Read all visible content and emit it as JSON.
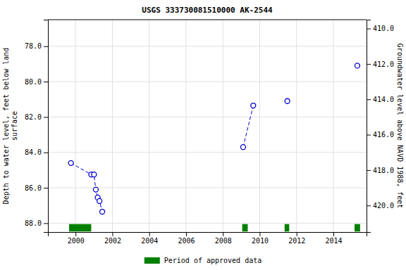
{
  "chart_data": {
    "type": "line",
    "title": "USGS 333730081510000 AK-2544",
    "ylabel": "Depth to water level, feet below land\nsurface",
    "y2label": "Groundwater level above NAVD 1988, feet",
    "xlim": [
      1998.5,
      2015.8
    ],
    "xticks": [
      2000,
      2002,
      2004,
      2006,
      2008,
      2010,
      2012,
      2014
    ],
    "ylim": [
      88.5,
      76.5
    ],
    "yticks": [
      {
        "value": 78,
        "label": "78.0"
      },
      {
        "value": 80,
        "label": "80.0"
      },
      {
        "value": 82,
        "label": "82.0"
      },
      {
        "value": 84,
        "label": "84.0"
      },
      {
        "value": 86,
        "label": "86.0"
      },
      {
        "value": 88,
        "label": "88.0"
      }
    ],
    "y2lim": [
      421.5,
      409.5
    ],
    "y2ticks": [
      {
        "value": 410,
        "label": "410.0"
      },
      {
        "value": 412,
        "label": "412.0"
      },
      {
        "value": 414,
        "label": "414.0"
      },
      {
        "value": 416,
        "label": "416.0"
      },
      {
        "value": 418,
        "label": "418.0"
      },
      {
        "value": 420,
        "label": "420.0"
      }
    ],
    "grid": true,
    "legend": "bottom",
    "series": [
      {
        "type": "line",
        "color": "#0000cc",
        "marker": "circle",
        "line_style": "dashed",
        "x": [
          1999.75,
          2000.85,
          2001.0,
          2001.1,
          2001.2,
          2001.3,
          2001.45
        ],
        "values": [
          84.6,
          85.25,
          85.25,
          86.1,
          86.55,
          86.75,
          87.35
        ]
      },
      {
        "type": "line",
        "color": "#0000cc",
        "marker": "circle",
        "line_style": "dashed",
        "x": [
          2009.1,
          2009.65
        ],
        "values": [
          83.7,
          81.35
        ]
      },
      {
        "type": "scatter",
        "color": "#0000cc",
        "marker": "circle",
        "x": [
          2011.5,
          2015.3
        ],
        "values": [
          81.1,
          79.1
        ]
      },
      {
        "type": "bar",
        "name": "Period of approved data",
        "color": "#008000",
        "starts": [
          1999.65,
          2009.05,
          2011.35,
          2015.15
        ],
        "ends": [
          2000.85,
          2009.35,
          2011.6,
          2015.45
        ],
        "bottom": 88.05,
        "height": 0.42
      }
    ]
  }
}
